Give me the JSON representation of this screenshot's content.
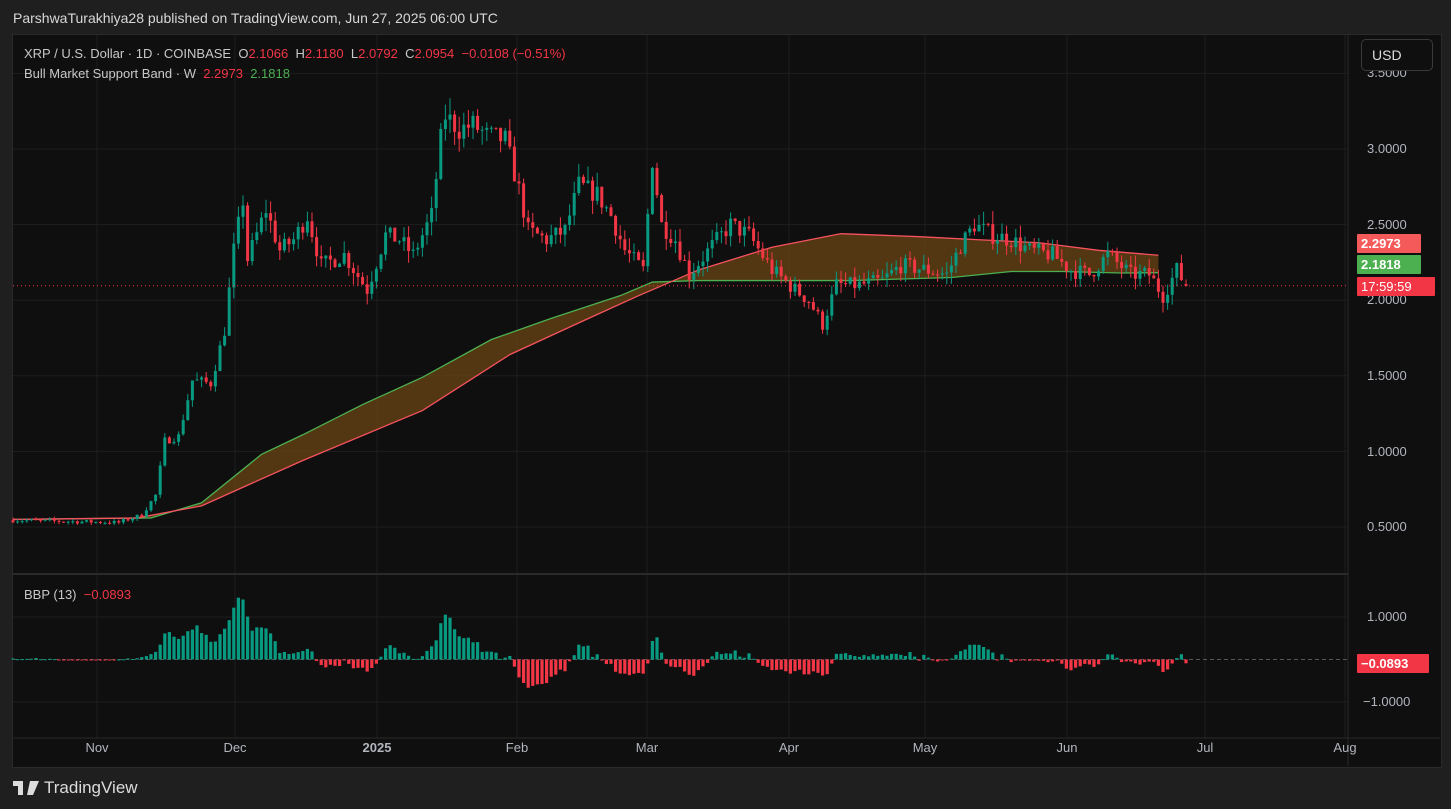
{
  "publisher": "ParshwaTurakhiya28 published on TradingView.com, Jun 27, 2025 06:00 UTC",
  "legend": {
    "symbol": "XRP / U.S. Dollar · 1D · COINBASE",
    "o_label": "O",
    "o": "2.1066",
    "h_label": "H",
    "h": "2.1180",
    "l_label": "L",
    "l": "2.0792",
    "c_label": "C",
    "c": "2.0954",
    "change": "−0.0108 (−0.51%)",
    "band_name": "Bull Market Support Band · W",
    "band_upper": "2.2973",
    "band_lower": "2.1818",
    "bbp_name": "BBP (13)",
    "bbp_value": "−0.0893"
  },
  "currency_button": "USD",
  "price_axis": [
    "3.5000",
    "3.0000",
    "2.5000",
    "2.0000",
    "1.5000",
    "1.0000",
    "0.5000"
  ],
  "bbp_axis": [
    "1.0000",
    "−1.0000"
  ],
  "tags": {
    "upper": "2.2973",
    "lower": "2.1818",
    "countdown": "17:59:59",
    "bbp": "−0.0893"
  },
  "time_axis": [
    "Nov",
    "Dec",
    "2025",
    "Feb",
    "Mar",
    "Apr",
    "May",
    "Jun",
    "Jul",
    "Aug"
  ],
  "logo_text": "TradingView",
  "colors": {
    "up": "#089981",
    "down": "#f23645",
    "upper_band": "#f7525f",
    "lower_band": "#4caf50",
    "band_fill": "#6b4514"
  },
  "chart_data": {
    "type": "candlestick",
    "title": "XRP / U.S. Dollar · 1D · COINBASE",
    "x_unit": "days since 2024-10-14",
    "ylim": [
      0.3,
      3.55
    ],
    "close_anchors": [
      [
        0,
        0.545
      ],
      [
        23,
        0.53
      ],
      [
        28,
        0.58
      ],
      [
        31,
        0.71
      ],
      [
        33,
        1.07
      ],
      [
        36,
        1.1
      ],
      [
        39,
        1.47
      ],
      [
        43,
        1.45
      ],
      [
        46,
        1.8
      ],
      [
        48,
        2.33
      ],
      [
        50,
        2.66
      ],
      [
        51,
        2.27
      ],
      [
        55,
        2.6
      ],
      [
        58,
        2.33
      ],
      [
        61,
        2.4
      ],
      [
        64,
        2.56
      ],
      [
        67,
        2.23
      ],
      [
        72,
        2.3
      ],
      [
        77,
        2.07
      ],
      [
        81,
        2.43
      ],
      [
        84,
        2.4
      ],
      [
        87,
        2.3
      ],
      [
        91,
        2.56
      ],
      [
        93,
        3.06
      ],
      [
        94,
        3.22
      ],
      [
        97,
        3.13
      ],
      [
        100,
        3.16
      ],
      [
        103,
        3.09
      ],
      [
        107,
        3.06
      ],
      [
        110,
        2.73
      ],
      [
        112,
        2.46
      ],
      [
        116,
        2.4
      ],
      [
        120,
        2.46
      ],
      [
        123,
        2.76
      ],
      [
        127,
        2.7
      ],
      [
        130,
        2.56
      ],
      [
        133,
        2.33
      ],
      [
        137,
        2.2
      ],
      [
        139,
        2.93
      ],
      [
        141,
        2.5
      ],
      [
        144,
        2.4
      ],
      [
        147,
        2.17
      ],
      [
        152,
        2.36
      ],
      [
        156,
        2.5
      ],
      [
        160,
        2.43
      ],
      [
        165,
        2.2
      ],
      [
        170,
        2.07
      ],
      [
        173,
        2.0
      ],
      [
        176,
        1.84
      ],
      [
        179,
        2.1
      ],
      [
        184,
        2.1
      ],
      [
        189,
        2.13
      ],
      [
        193,
        2.23
      ],
      [
        197,
        2.21
      ],
      [
        203,
        2.17
      ],
      [
        206,
        2.36
      ],
      [
        209,
        2.5
      ],
      [
        213,
        2.43
      ],
      [
        217,
        2.4
      ],
      [
        221,
        2.33
      ],
      [
        226,
        2.3
      ],
      [
        230,
        2.2
      ],
      [
        234,
        2.17
      ],
      [
        238,
        2.3
      ],
      [
        243,
        2.17
      ],
      [
        247,
        2.17
      ],
      [
        250,
        2.03
      ],
      [
        253,
        2.2
      ],
      [
        255,
        2.0954
      ]
    ],
    "bull_market_support_band": {
      "upper": [
        [
          0,
          0.55
        ],
        [
          27,
          0.56
        ],
        [
          41,
          0.64
        ],
        [
          63,
          0.94
        ],
        [
          89,
          1.27
        ],
        [
          108,
          1.64
        ],
        [
          123,
          1.85
        ],
        [
          136,
          2.03
        ],
        [
          149,
          2.2
        ],
        [
          165,
          2.35
        ],
        [
          180,
          2.44
        ],
        [
          197,
          2.42
        ],
        [
          210,
          2.4
        ],
        [
          223,
          2.38
        ],
        [
          236,
          2.33
        ],
        [
          249,
          2.2973
        ]
      ],
      "lower": [
        [
          0,
          0.55
        ],
        [
          30,
          0.56
        ],
        [
          41,
          0.66
        ],
        [
          54,
          0.98
        ],
        [
          63,
          1.11
        ],
        [
          76,
          1.31
        ],
        [
          89,
          1.49
        ],
        [
          104,
          1.74
        ],
        [
          117,
          1.88
        ],
        [
          132,
          2.03
        ],
        [
          139,
          2.12
        ],
        [
          149,
          2.13
        ],
        [
          165,
          2.13
        ],
        [
          182,
          2.13
        ],
        [
          204,
          2.15
        ],
        [
          217,
          2.19
        ],
        [
          228,
          2.19
        ],
        [
          241,
          2.18
        ],
        [
          249,
          2.1818
        ]
      ]
    },
    "bbp": {
      "period": 13,
      "last": -0.0893,
      "ylim": [
        -1.35,
        1.4
      ]
    }
  }
}
